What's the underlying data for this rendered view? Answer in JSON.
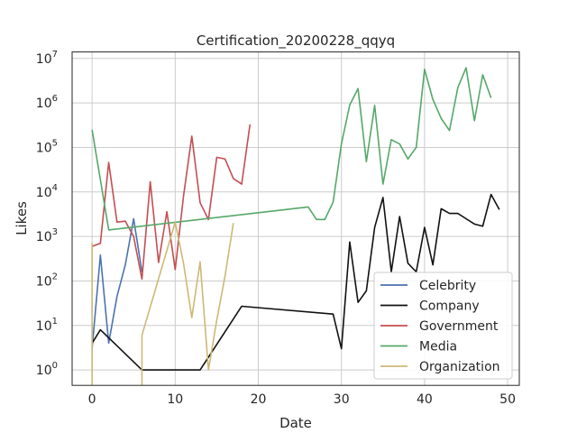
{
  "chart_data": {
    "type": "line",
    "title": "Certification_20200228_qqyq",
    "xlabel": "Date",
    "ylabel": "Likes",
    "xlim": [
      -2.4,
      51.4
    ],
    "ylim": [
      0.45,
      14000000
    ],
    "yscale": "log",
    "grid": true,
    "legend_position": "lower-right",
    "xticks": [
      0,
      10,
      20,
      30,
      40,
      50
    ],
    "yticks": [
      {
        "value": 1,
        "base": "10",
        "exp": "0"
      },
      {
        "value": 10,
        "base": "10",
        "exp": "1"
      },
      {
        "value": 100,
        "base": "10",
        "exp": "2"
      },
      {
        "value": 1000,
        "base": "10",
        "exp": "3"
      },
      {
        "value": 10000,
        "base": "10",
        "exp": "4"
      },
      {
        "value": 100000,
        "base": "10",
        "exp": "5"
      },
      {
        "value": 1000000,
        "base": "10",
        "exp": "6"
      },
      {
        "value": 10000000,
        "base": "10",
        "exp": "7"
      }
    ],
    "series": [
      {
        "name": "Celebrity",
        "color": "#4c72b0",
        "x": [
          0,
          1,
          2,
          3,
          4,
          5,
          6
        ],
        "y": [
          3,
          380,
          4,
          45,
          230,
          2500,
          160
        ]
      },
      {
        "name": "Company",
        "color": "#111111",
        "x": [
          0,
          1,
          6,
          13,
          18,
          29,
          30,
          31,
          32,
          33,
          34,
          35,
          36,
          37,
          38,
          39,
          40,
          41,
          42,
          43,
          44,
          45,
          46,
          47,
          48,
          49
        ],
        "y": [
          4,
          8,
          1,
          1,
          27,
          18,
          3,
          750,
          33,
          60,
          1600,
          7500,
          160,
          2800,
          250,
          160,
          1600,
          230,
          4200,
          3300,
          3300,
          2500,
          1900,
          1700,
          8800,
          4000
        ]
      },
      {
        "name": "Government",
        "color": "#c44e52",
        "x": [
          0,
          1,
          2,
          3,
          4,
          5,
          6,
          7,
          8,
          9,
          10,
          11,
          12,
          13,
          14,
          15,
          16,
          17,
          18,
          19
        ],
        "y": [
          600,
          700,
          46000,
          2100,
          2200,
          1000,
          110,
          17000,
          260,
          3600,
          180,
          8000,
          180000,
          5700,
          2400,
          60000,
          55000,
          20000,
          15000,
          330000
        ]
      },
      {
        "name": "Media",
        "color": "#55a868",
        "x": [
          0,
          2,
          26,
          27,
          28,
          29,
          30,
          31,
          32,
          33,
          34,
          35,
          36,
          37,
          38,
          39,
          40,
          41,
          42,
          43,
          44,
          45,
          46,
          47,
          48
        ],
        "y": [
          250000,
          1400,
          4600,
          2400,
          2400,
          5900,
          120000,
          900000,
          2100000,
          48000,
          880000,
          15000,
          150000,
          120000,
          55000,
          100000,
          5700000,
          1200000,
          450000,
          240000,
          2200000,
          6200000,
          400000,
          4300000,
          1300000
        ]
      },
      {
        "name": "Organization",
        "color": "#ccb974",
        "x": [
          0,
          0,
          0,
          6,
          6,
          10,
          11,
          12,
          13,
          14,
          15,
          16,
          17
        ],
        "y": [
          0.2,
          700,
          0.2,
          0.2,
          6,
          2100,
          250,
          15,
          270,
          1,
          13,
          130,
          2000
        ]
      }
    ]
  }
}
